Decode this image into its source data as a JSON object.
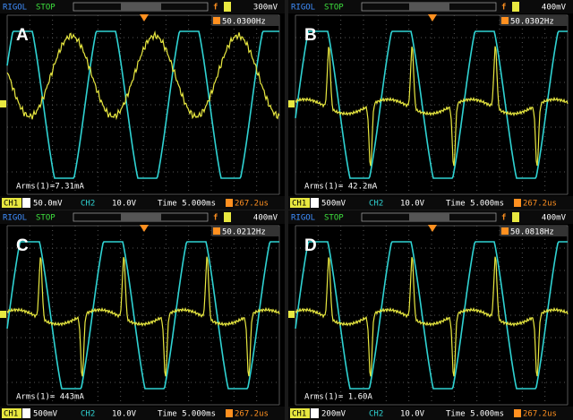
{
  "panels": [
    {
      "label": "A",
      "brand": "RIGOL",
      "status": "STOP",
      "trigger_level": "300mV",
      "frequency": "50.0300Hz",
      "measurement": "Arms(1)=7.31mA",
      "ch1_label": "CH1",
      "ch1_scale": "50.0mV",
      "ch2_label": "CH2",
      "ch2_scale": "10.0V",
      "timebase": "Time 5.000ms",
      "trigger_offset": "267.2us"
    },
    {
      "label": "B",
      "brand": "RIGOL",
      "status": "STOP",
      "trigger_level": "400mV",
      "frequency": "50.0302Hz",
      "measurement": "Arms(1)= 42.2mA",
      "ch1_label": "CH1",
      "ch1_scale": "500mV",
      "ch2_label": "CH2",
      "ch2_scale": "10.0V",
      "timebase": "Time 5.000ms",
      "trigger_offset": "267.2us"
    },
    {
      "label": "C",
      "brand": "RIGOL",
      "status": "STOP",
      "trigger_level": "400mV",
      "frequency": "50.0212Hz",
      "measurement": "Arms(1)= 443mA",
      "ch1_label": "CH1",
      "ch1_scale": "500mV",
      "ch2_label": "CH2",
      "ch2_scale": "10.0V",
      "timebase": "Time 5.000ms",
      "trigger_offset": "267.2us"
    },
    {
      "label": "D",
      "brand": "RIGOL",
      "status": "STOP",
      "trigger_level": "400mV",
      "frequency": "50.0818Hz",
      "measurement": "Arms(1)= 1.60A",
      "ch1_label": "CH1",
      "ch1_scale": "200mV",
      "ch2_label": "CH2",
      "ch2_scale": "10.0V",
      "timebase": "Time 5.000ms",
      "trigger_offset": "267.2us"
    }
  ]
}
